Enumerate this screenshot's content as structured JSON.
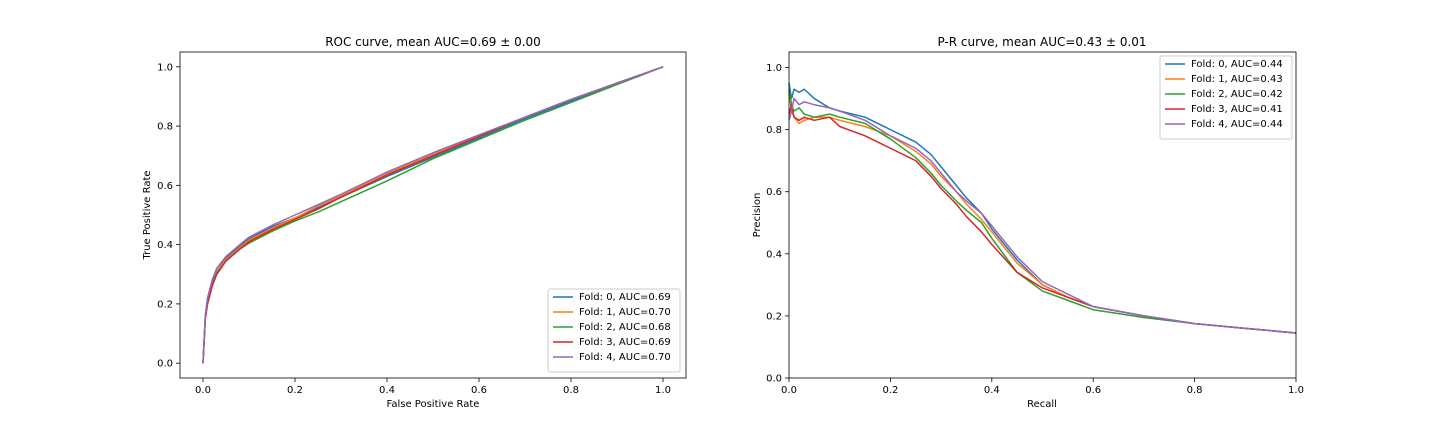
{
  "chart_data": [
    {
      "type": "line",
      "title": "ROC curve, mean AUC=0.69 ± 0.00",
      "xlabel": "False Positive Rate",
      "ylabel": "True Positive Rate",
      "xlim": [
        -0.05,
        1.05
      ],
      "ylim": [
        -0.05,
        1.05
      ],
      "xticks": [
        0.0,
        0.2,
        0.4,
        0.6,
        0.8,
        1.0
      ],
      "yticks": [
        0.0,
        0.2,
        0.4,
        0.6,
        0.8,
        1.0
      ],
      "tick_labels_x": [
        "0.0",
        "0.2",
        "0.4",
        "0.6",
        "0.8",
        "1.0"
      ],
      "tick_labels_y": [
        "0.0",
        "0.2",
        "0.4",
        "0.6",
        "0.8",
        "1.0"
      ],
      "legend_position": "lower-right",
      "grid": false,
      "series": [
        {
          "name": "Fold: 0, AUC=0.69",
          "color": "#1f77b4",
          "x": [
            0,
            0.005,
            0.01,
            0.02,
            0.03,
            0.05,
            0.08,
            0.1,
            0.15,
            0.2,
            0.25,
            0.3,
            0.4,
            0.5,
            0.6,
            0.7,
            0.8,
            0.9,
            1.0
          ],
          "y": [
            0,
            0.16,
            0.22,
            0.28,
            0.32,
            0.355,
            0.395,
            0.42,
            0.46,
            0.49,
            0.525,
            0.56,
            0.63,
            0.695,
            0.76,
            0.825,
            0.885,
            0.945,
            1.0
          ]
        },
        {
          "name": "Fold: 1, AUC=0.70",
          "color": "#ff7f0e",
          "x": [
            0,
            0.005,
            0.01,
            0.02,
            0.03,
            0.05,
            0.08,
            0.1,
            0.15,
            0.2,
            0.25,
            0.3,
            0.4,
            0.5,
            0.6,
            0.7,
            0.8,
            0.9,
            1.0
          ],
          "y": [
            0,
            0.15,
            0.21,
            0.27,
            0.31,
            0.35,
            0.39,
            0.415,
            0.455,
            0.49,
            0.53,
            0.565,
            0.64,
            0.705,
            0.77,
            0.83,
            0.89,
            0.945,
            1.0
          ]
        },
        {
          "name": "Fold: 2, AUC=0.68",
          "color": "#2ca02c",
          "x": [
            0,
            0.005,
            0.01,
            0.02,
            0.03,
            0.05,
            0.08,
            0.1,
            0.15,
            0.2,
            0.25,
            0.3,
            0.4,
            0.5,
            0.6,
            0.7,
            0.8,
            0.9,
            1.0
          ],
          "y": [
            0,
            0.15,
            0.21,
            0.265,
            0.305,
            0.345,
            0.385,
            0.405,
            0.445,
            0.48,
            0.51,
            0.545,
            0.615,
            0.69,
            0.755,
            0.82,
            0.88,
            0.94,
            1.0
          ]
        },
        {
          "name": "Fold: 3, AUC=0.69",
          "color": "#d62728",
          "x": [
            0,
            0.005,
            0.01,
            0.02,
            0.03,
            0.05,
            0.08,
            0.1,
            0.15,
            0.2,
            0.25,
            0.3,
            0.4,
            0.5,
            0.6,
            0.7,
            0.8,
            0.9,
            1.0
          ],
          "y": [
            0,
            0.15,
            0.2,
            0.26,
            0.3,
            0.345,
            0.385,
            0.41,
            0.45,
            0.485,
            0.52,
            0.56,
            0.635,
            0.7,
            0.765,
            0.83,
            0.89,
            0.945,
            1.0
          ]
        },
        {
          "name": "Fold: 4, AUC=0.70",
          "color": "#9467bd",
          "x": [
            0,
            0.005,
            0.01,
            0.02,
            0.03,
            0.05,
            0.08,
            0.1,
            0.15,
            0.2,
            0.25,
            0.3,
            0.4,
            0.5,
            0.6,
            0.7,
            0.8,
            0.9,
            1.0
          ],
          "y": [
            0,
            0.16,
            0.22,
            0.28,
            0.32,
            0.36,
            0.4,
            0.425,
            0.465,
            0.5,
            0.535,
            0.57,
            0.645,
            0.71,
            0.77,
            0.83,
            0.89,
            0.945,
            1.0
          ]
        }
      ]
    },
    {
      "type": "line",
      "title": "P-R curve, mean AUC=0.43 ± 0.01",
      "xlabel": "Recall",
      "ylabel": "Precision",
      "xlim": [
        0.0,
        1.0
      ],
      "ylim": [
        0.0,
        1.05
      ],
      "xticks": [
        0.0,
        0.2,
        0.4,
        0.6,
        0.8,
        1.0
      ],
      "yticks": [
        0.0,
        0.2,
        0.4,
        0.6,
        0.8,
        1.0
      ],
      "tick_labels_x": [
        "0.0",
        "0.2",
        "0.4",
        "0.6",
        "0.8",
        "1.0"
      ],
      "tick_labels_y": [
        "0.0",
        "0.2",
        "0.4",
        "0.6",
        "0.8",
        "1.0"
      ],
      "legend_position": "upper-right",
      "grid": false,
      "series": [
        {
          "name": "Fold: 0, AUC=0.44",
          "color": "#1f77b4",
          "x": [
            0.0,
            0.005,
            0.01,
            0.02,
            0.03,
            0.05,
            0.08,
            0.1,
            0.15,
            0.2,
            0.25,
            0.28,
            0.3,
            0.33,
            0.35,
            0.38,
            0.4,
            0.45,
            0.5,
            0.55,
            0.6,
            0.7,
            0.8,
            0.9,
            1.0
          ],
          "y": [
            0.95,
            0.9,
            0.93,
            0.92,
            0.93,
            0.9,
            0.87,
            0.86,
            0.84,
            0.8,
            0.76,
            0.72,
            0.68,
            0.62,
            0.58,
            0.53,
            0.48,
            0.38,
            0.3,
            0.26,
            0.23,
            0.2,
            0.175,
            0.16,
            0.145
          ]
        },
        {
          "name": "Fold: 1, AUC=0.43",
          "color": "#ff7f0e",
          "x": [
            0.0,
            0.005,
            0.01,
            0.02,
            0.03,
            0.05,
            0.08,
            0.1,
            0.15,
            0.2,
            0.25,
            0.28,
            0.3,
            0.33,
            0.35,
            0.38,
            0.4,
            0.45,
            0.5,
            0.55,
            0.6,
            0.7,
            0.8,
            0.9,
            1.0
          ],
          "y": [
            0.92,
            0.86,
            0.84,
            0.82,
            0.83,
            0.84,
            0.84,
            0.83,
            0.81,
            0.78,
            0.73,
            0.69,
            0.65,
            0.6,
            0.56,
            0.51,
            0.47,
            0.37,
            0.3,
            0.26,
            0.23,
            0.2,
            0.175,
            0.16,
            0.145
          ]
        },
        {
          "name": "Fold: 2, AUC=0.42",
          "color": "#2ca02c",
          "x": [
            0.0,
            0.005,
            0.01,
            0.02,
            0.03,
            0.05,
            0.08,
            0.1,
            0.15,
            0.2,
            0.25,
            0.28,
            0.3,
            0.33,
            0.35,
            0.38,
            0.4,
            0.45,
            0.5,
            0.55,
            0.6,
            0.7,
            0.8,
            0.9,
            1.0
          ],
          "y": [
            0.93,
            0.88,
            0.86,
            0.87,
            0.85,
            0.84,
            0.85,
            0.84,
            0.82,
            0.77,
            0.71,
            0.66,
            0.62,
            0.57,
            0.54,
            0.5,
            0.45,
            0.34,
            0.28,
            0.25,
            0.22,
            0.195,
            0.175,
            0.16,
            0.145
          ]
        },
        {
          "name": "Fold: 3, AUC=0.41",
          "color": "#d62728",
          "x": [
            0.0,
            0.005,
            0.01,
            0.02,
            0.03,
            0.05,
            0.08,
            0.1,
            0.15,
            0.2,
            0.25,
            0.28,
            0.3,
            0.33,
            0.35,
            0.38,
            0.4,
            0.45,
            0.5,
            0.55,
            0.6,
            0.7,
            0.8,
            0.9,
            1.0
          ],
          "y": [
            0.85,
            0.88,
            0.84,
            0.83,
            0.84,
            0.83,
            0.84,
            0.81,
            0.78,
            0.74,
            0.7,
            0.65,
            0.61,
            0.56,
            0.52,
            0.47,
            0.43,
            0.34,
            0.29,
            0.26,
            0.23,
            0.2,
            0.175,
            0.16,
            0.145
          ]
        },
        {
          "name": "Fold: 4, AUC=0.44",
          "color": "#9467bd",
          "x": [
            0.0,
            0.005,
            0.01,
            0.02,
            0.03,
            0.05,
            0.08,
            0.1,
            0.15,
            0.2,
            0.25,
            0.28,
            0.3,
            0.33,
            0.35,
            0.38,
            0.4,
            0.45,
            0.5,
            0.55,
            0.6,
            0.7,
            0.8,
            0.9,
            1.0
          ],
          "y": [
            0.83,
            0.86,
            0.9,
            0.88,
            0.89,
            0.88,
            0.87,
            0.86,
            0.83,
            0.78,
            0.74,
            0.7,
            0.66,
            0.6,
            0.57,
            0.53,
            0.49,
            0.39,
            0.31,
            0.27,
            0.23,
            0.2,
            0.175,
            0.16,
            0.145
          ]
        }
      ]
    }
  ]
}
